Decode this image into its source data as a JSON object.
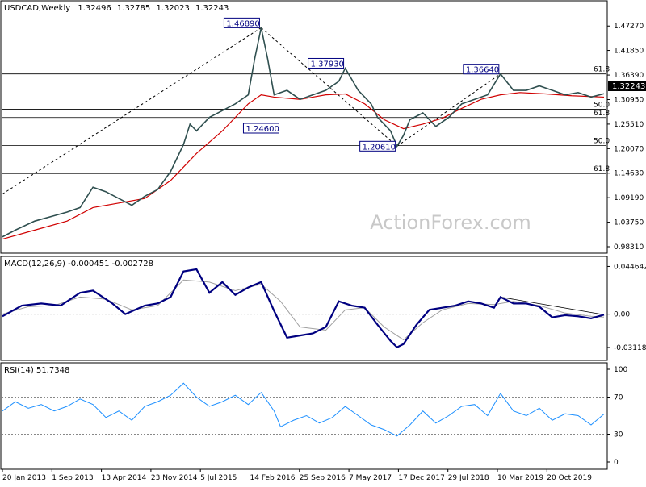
{
  "chart_data": [
    {
      "type": "line",
      "subtype": "ohlc-weekly",
      "title": "USDCAD,Weekly",
      "ohlc": {
        "open": "1.32496",
        "high": "1.32785",
        "low": "1.32023",
        "close": "1.32243"
      },
      "last_price": "1.32243",
      "watermark": "ActionForex.com",
      "yticks": [
        "1.47270",
        "1.41850",
        "1.36390",
        "1.30950",
        "1.25510",
        "1.20070",
        "1.14630",
        "1.09190",
        "1.03750",
        "0.98310"
      ],
      "ylim": [
        0.9831,
        1.4946
      ],
      "xticks": [
        "20 Jan 2013",
        "1 Sep 2013",
        "13 Apr 2014",
        "23 Nov 2014",
        "5 Jul 2015",
        "14 Feb 2016",
        "25 Sep 2016",
        "7 May 2017",
        "17 Dec 2017",
        "29 Jul 2018",
        "10 Mar 2019",
        "20 Oct 2019"
      ],
      "price_series": [
        [
          0,
          1.005
        ],
        [
          2,
          1.02
        ],
        [
          5,
          1.04
        ],
        [
          8,
          1.052
        ],
        [
          10,
          1.06
        ],
        [
          12,
          1.07
        ],
        [
          14,
          1.115
        ],
        [
          16,
          1.105
        ],
        [
          18,
          1.09
        ],
        [
          20,
          1.075
        ],
        [
          22,
          1.095
        ],
        [
          24,
          1.11
        ],
        [
          26,
          1.15
        ],
        [
          28,
          1.21
        ],
        [
          29,
          1.255
        ],
        [
          30,
          1.24
        ],
        [
          32,
          1.27
        ],
        [
          34,
          1.285
        ],
        [
          36,
          1.3
        ],
        [
          38,
          1.32
        ],
        [
          39,
          1.4
        ],
        [
          40,
          1.4689
        ],
        [
          41,
          1.4
        ],
        [
          42,
          1.32
        ],
        [
          44,
          1.33
        ],
        [
          46,
          1.31
        ],
        [
          48,
          1.32
        ],
        [
          50,
          1.33
        ],
        [
          52,
          1.35
        ],
        [
          53,
          1.379
        ],
        [
          55,
          1.33
        ],
        [
          57,
          1.3
        ],
        [
          58,
          1.27
        ],
        [
          60,
          1.24
        ],
        [
          61,
          1.2061
        ],
        [
          62,
          1.23
        ],
        [
          63,
          1.265
        ],
        [
          65,
          1.28
        ],
        [
          67,
          1.25
        ],
        [
          69,
          1.27
        ],
        [
          71,
          1.3
        ],
        [
          73,
          1.31
        ],
        [
          75,
          1.32
        ],
        [
          77,
          1.3664
        ],
        [
          79,
          1.33
        ],
        [
          81,
          1.33
        ],
        [
          83,
          1.34
        ],
        [
          85,
          1.33
        ],
        [
          87,
          1.32
        ],
        [
          89,
          1.325
        ],
        [
          91,
          1.315
        ],
        [
          93,
          1.3224
        ]
      ],
      "ma_series": [
        [
          0,
          1.0
        ],
        [
          5,
          1.02
        ],
        [
          10,
          1.04
        ],
        [
          14,
          1.07
        ],
        [
          18,
          1.08
        ],
        [
          22,
          1.09
        ],
        [
          26,
          1.13
        ],
        [
          30,
          1.19
        ],
        [
          34,
          1.24
        ],
        [
          38,
          1.3
        ],
        [
          40,
          1.32
        ],
        [
          42,
          1.315
        ],
        [
          46,
          1.31
        ],
        [
          50,
          1.32
        ],
        [
          53,
          1.322
        ],
        [
          56,
          1.3
        ],
        [
          59,
          1.265
        ],
        [
          62,
          1.245
        ],
        [
          65,
          1.255
        ],
        [
          68,
          1.268
        ],
        [
          71,
          1.29
        ],
        [
          74,
          1.31
        ],
        [
          77,
          1.32
        ],
        [
          80,
          1.325
        ],
        [
          84,
          1.322
        ],
        [
          88,
          1.318
        ],
        [
          93,
          1.315
        ]
      ],
      "pivot_labels": [
        {
          "label": "1.46890",
          "x": 40,
          "y": 1.4689
        },
        {
          "label": "1.37930",
          "x": 53,
          "y": 1.3793
        },
        {
          "label": "1.36640",
          "x": 77,
          "y": 1.3664
        },
        {
          "label": "1.24600",
          "x": 43,
          "y": 1.246
        },
        {
          "label": "1.20610",
          "x": 61,
          "y": 1.2061
        }
      ],
      "fib_lines": [
        {
          "label": "61.8",
          "y": 1.3664
        },
        {
          "label": "50.0",
          "y": 1.2879
        },
        {
          "label": "61.8",
          "y": 1.2697
        },
        {
          "label": "50.0",
          "y": 1.2073
        },
        {
          "label": "61.8",
          "y": 1.1455
        }
      ]
    },
    {
      "type": "line",
      "title": "MACD(12,26,9) -0.000451 -0.002728",
      "yticks": [
        "0.044642",
        "0.00",
        "-0.031183"
      ],
      "ylim": [
        -0.038,
        0.048
      ],
      "macd_series": [
        [
          0,
          -0.002
        ],
        [
          3,
          0.008
        ],
        [
          6,
          0.01
        ],
        [
          9,
          0.008
        ],
        [
          12,
          0.02
        ],
        [
          14,
          0.022
        ],
        [
          17,
          0.01
        ],
        [
          19,
          0.0
        ],
        [
          22,
          0.008
        ],
        [
          24,
          0.01
        ],
        [
          26,
          0.016
        ],
        [
          28,
          0.04
        ],
        [
          30,
          0.042
        ],
        [
          32,
          0.02
        ],
        [
          34,
          0.03
        ],
        [
          36,
          0.018
        ],
        [
          38,
          0.025
        ],
        [
          40,
          0.03
        ],
        [
          42,
          0.003
        ],
        [
          44,
          -0.022
        ],
        [
          46,
          -0.02
        ],
        [
          48,
          -0.018
        ],
        [
          50,
          -0.012
        ],
        [
          52,
          0.012
        ],
        [
          54,
          0.008
        ],
        [
          56,
          0.006
        ],
        [
          58,
          -0.01
        ],
        [
          60,
          -0.025
        ],
        [
          61,
          -0.031
        ],
        [
          62,
          -0.028
        ],
        [
          64,
          -0.01
        ],
        [
          66,
          0.004
        ],
        [
          68,
          0.006
        ],
        [
          70,
          0.008
        ],
        [
          72,
          0.012
        ],
        [
          74,
          0.01
        ],
        [
          76,
          0.006
        ],
        [
          77,
          0.016
        ],
        [
          79,
          0.01
        ],
        [
          81,
          0.01
        ],
        [
          83,
          0.007
        ],
        [
          85,
          -0.003
        ],
        [
          87,
          -0.001
        ],
        [
          89,
          -0.002
        ],
        [
          91,
          -0.004
        ],
        [
          93,
          -0.0005
        ]
      ],
      "signal_series": [
        [
          0,
          0.0
        ],
        [
          4,
          0.007
        ],
        [
          8,
          0.008
        ],
        [
          12,
          0.016
        ],
        [
          16,
          0.014
        ],
        [
          20,
          0.004
        ],
        [
          24,
          0.008
        ],
        [
          28,
          0.032
        ],
        [
          32,
          0.03
        ],
        [
          36,
          0.022
        ],
        [
          40,
          0.028
        ],
        [
          43,
          0.012
        ],
        [
          46,
          -0.012
        ],
        [
          50,
          -0.015
        ],
        [
          53,
          0.004
        ],
        [
          56,
          0.006
        ],
        [
          59,
          -0.012
        ],
        [
          62,
          -0.024
        ],
        [
          65,
          -0.008
        ],
        [
          68,
          0.004
        ],
        [
          72,
          0.01
        ],
        [
          76,
          0.009
        ],
        [
          79,
          0.012
        ],
        [
          83,
          0.008
        ],
        [
          87,
          0.001
        ],
        [
          91,
          -0.002
        ],
        [
          93,
          -0.0027
        ]
      ]
    },
    {
      "type": "line",
      "title": "RSI(14) 51.7348",
      "yticks": [
        "100",
        "70",
        "30",
        "0"
      ],
      "ylim": [
        0,
        100
      ],
      "rsi_series": [
        [
          0,
          55
        ],
        [
          2,
          65
        ],
        [
          4,
          58
        ],
        [
          6,
          62
        ],
        [
          8,
          55
        ],
        [
          10,
          60
        ],
        [
          12,
          68
        ],
        [
          14,
          62
        ],
        [
          16,
          48
        ],
        [
          18,
          55
        ],
        [
          20,
          45
        ],
        [
          22,
          60
        ],
        [
          24,
          65
        ],
        [
          26,
          72
        ],
        [
          28,
          85
        ],
        [
          30,
          70
        ],
        [
          32,
          60
        ],
        [
          34,
          65
        ],
        [
          36,
          72
        ],
        [
          38,
          62
        ],
        [
          40,
          75
        ],
        [
          42,
          55
        ],
        [
          43,
          38
        ],
        [
          45,
          45
        ],
        [
          47,
          50
        ],
        [
          49,
          42
        ],
        [
          51,
          48
        ],
        [
          53,
          60
        ],
        [
          55,
          50
        ],
        [
          57,
          40
        ],
        [
          59,
          35
        ],
        [
          61,
          28
        ],
        [
          63,
          40
        ],
        [
          65,
          55
        ],
        [
          67,
          42
        ],
        [
          69,
          50
        ],
        [
          71,
          60
        ],
        [
          73,
          62
        ],
        [
          75,
          50
        ],
        [
          77,
          74
        ],
        [
          79,
          55
        ],
        [
          81,
          50
        ],
        [
          83,
          58
        ],
        [
          85,
          45
        ],
        [
          87,
          52
        ],
        [
          89,
          50
        ],
        [
          91,
          40
        ],
        [
          93,
          51.7
        ]
      ]
    }
  ]
}
